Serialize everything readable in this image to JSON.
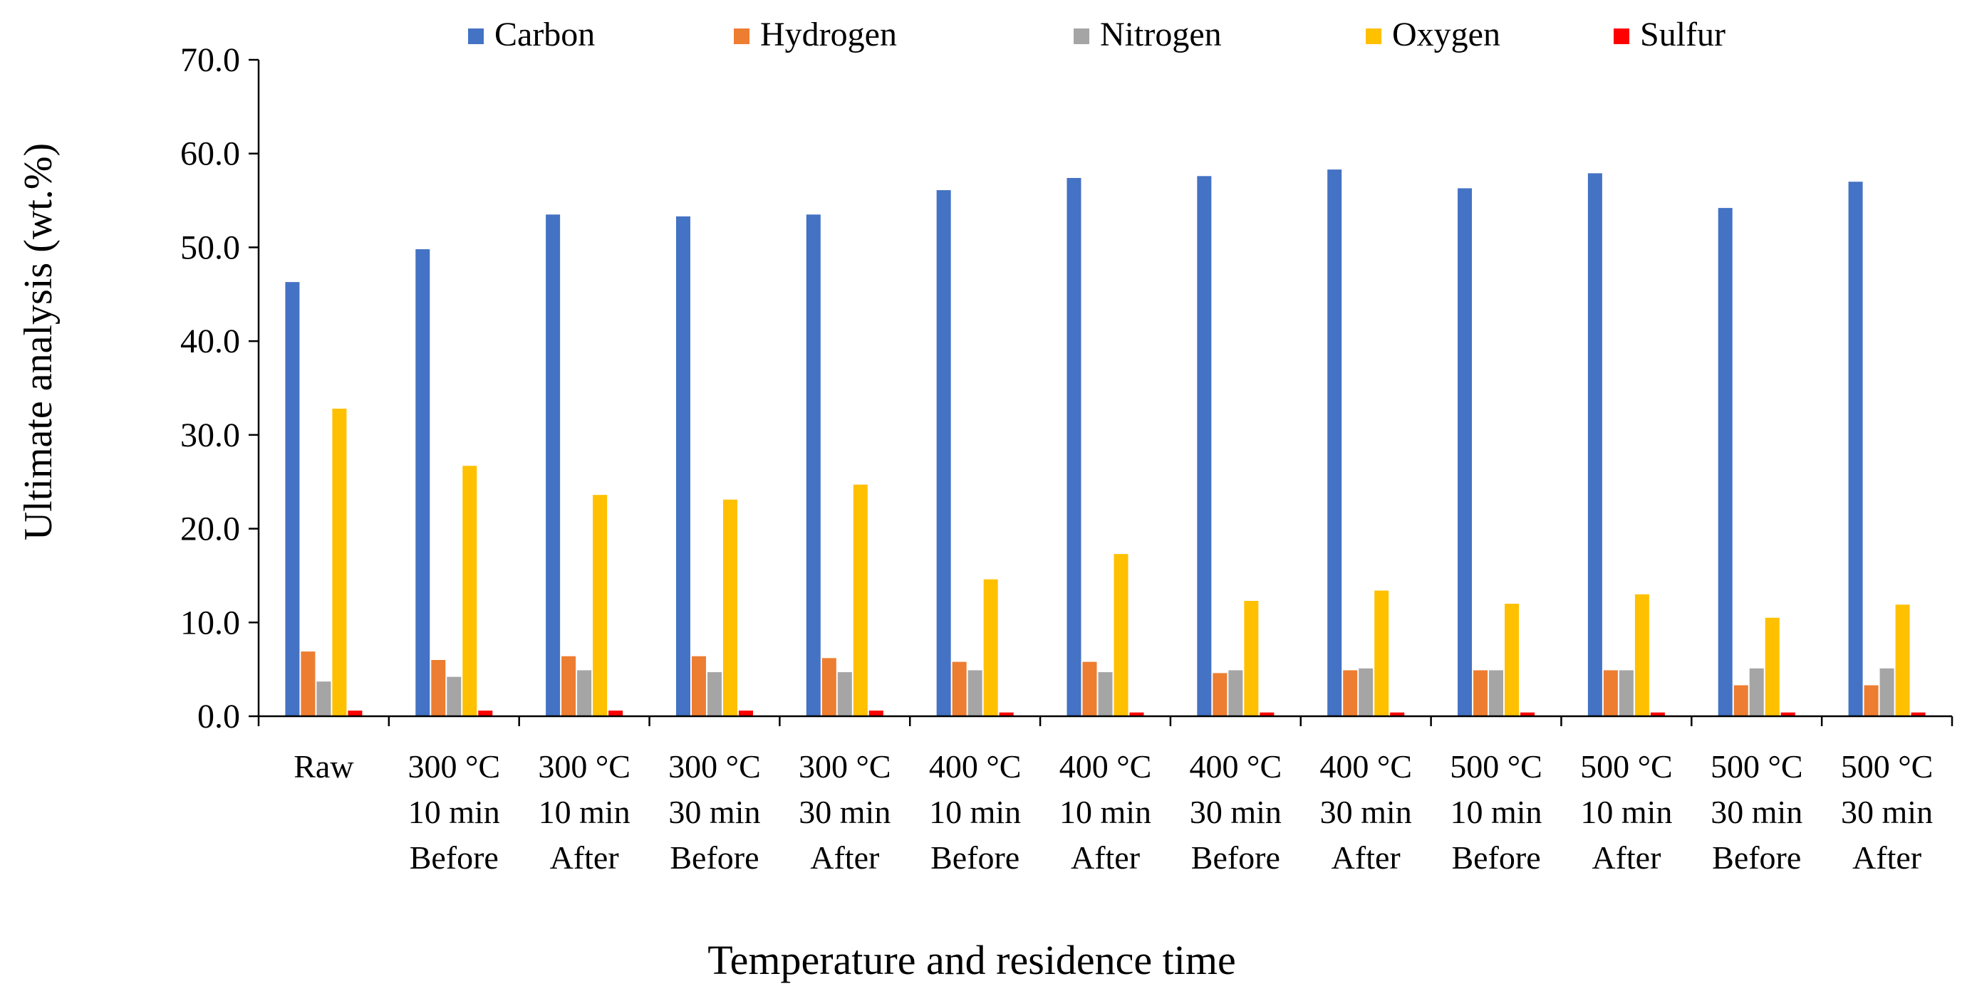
{
  "chart_data": {
    "type": "bar",
    "title": "",
    "xlabel": "Temperature and residence time",
    "ylabel": "Ultimate analysis (wt.%)",
    "ylim": [
      0,
      70
    ],
    "ytick_step": 10,
    "ytick_labels": [
      "0.0",
      "10.0",
      "20.0",
      "30.0",
      "40.0",
      "50.0",
      "60.0",
      "70.0"
    ],
    "grid": false,
    "legend_position": "top",
    "categories": [
      [
        "Raw"
      ],
      [
        "300 °C",
        "10 min",
        "Before"
      ],
      [
        "300 °C",
        "10 min",
        "After"
      ],
      [
        "300 °C",
        "30 min",
        "Before"
      ],
      [
        "300 °C",
        "30 min",
        "After"
      ],
      [
        "400 °C",
        "10 min",
        "Before"
      ],
      [
        "400 °C",
        "10 min",
        "After"
      ],
      [
        "400 °C",
        "30 min",
        "Before"
      ],
      [
        "400 °C",
        "30 min",
        "After"
      ],
      [
        "500 °C",
        "10 min",
        "Before"
      ],
      [
        "500 °C",
        "10 min",
        "After"
      ],
      [
        "500 °C",
        "30 min",
        "Before"
      ],
      [
        "500 °C",
        "30 min",
        "After"
      ]
    ],
    "series": [
      {
        "name": "Carbon",
        "color": "#4472C4",
        "values": [
          46.3,
          49.8,
          53.5,
          53.3,
          53.5,
          56.1,
          57.4,
          57.6,
          58.3,
          56.3,
          57.9,
          54.2,
          57.0
        ]
      },
      {
        "name": "Hydrogen",
        "color": "#ED7D31",
        "values": [
          6.9,
          6.0,
          6.4,
          6.4,
          6.2,
          5.8,
          5.8,
          4.6,
          4.9,
          4.9,
          4.9,
          3.3,
          3.3
        ]
      },
      {
        "name": "Nitrogen",
        "color": "#A5A5A5",
        "values": [
          3.7,
          4.2,
          4.9,
          4.7,
          4.7,
          4.9,
          4.7,
          4.9,
          5.1,
          4.9,
          4.9,
          5.1,
          5.1
        ]
      },
      {
        "name": "Oxygen",
        "color": "#FFC000",
        "values": [
          32.8,
          26.7,
          23.6,
          23.1,
          24.7,
          14.6,
          17.3,
          12.3,
          13.4,
          12.0,
          13.0,
          10.5,
          11.9
        ]
      },
      {
        "name": "Sulfur",
        "color": "#FF0000",
        "values": [
          0.6,
          0.6,
          0.6,
          0.6,
          0.6,
          0.4,
          0.4,
          0.4,
          0.4,
          0.4,
          0.4,
          0.4,
          0.4
        ]
      }
    ]
  }
}
